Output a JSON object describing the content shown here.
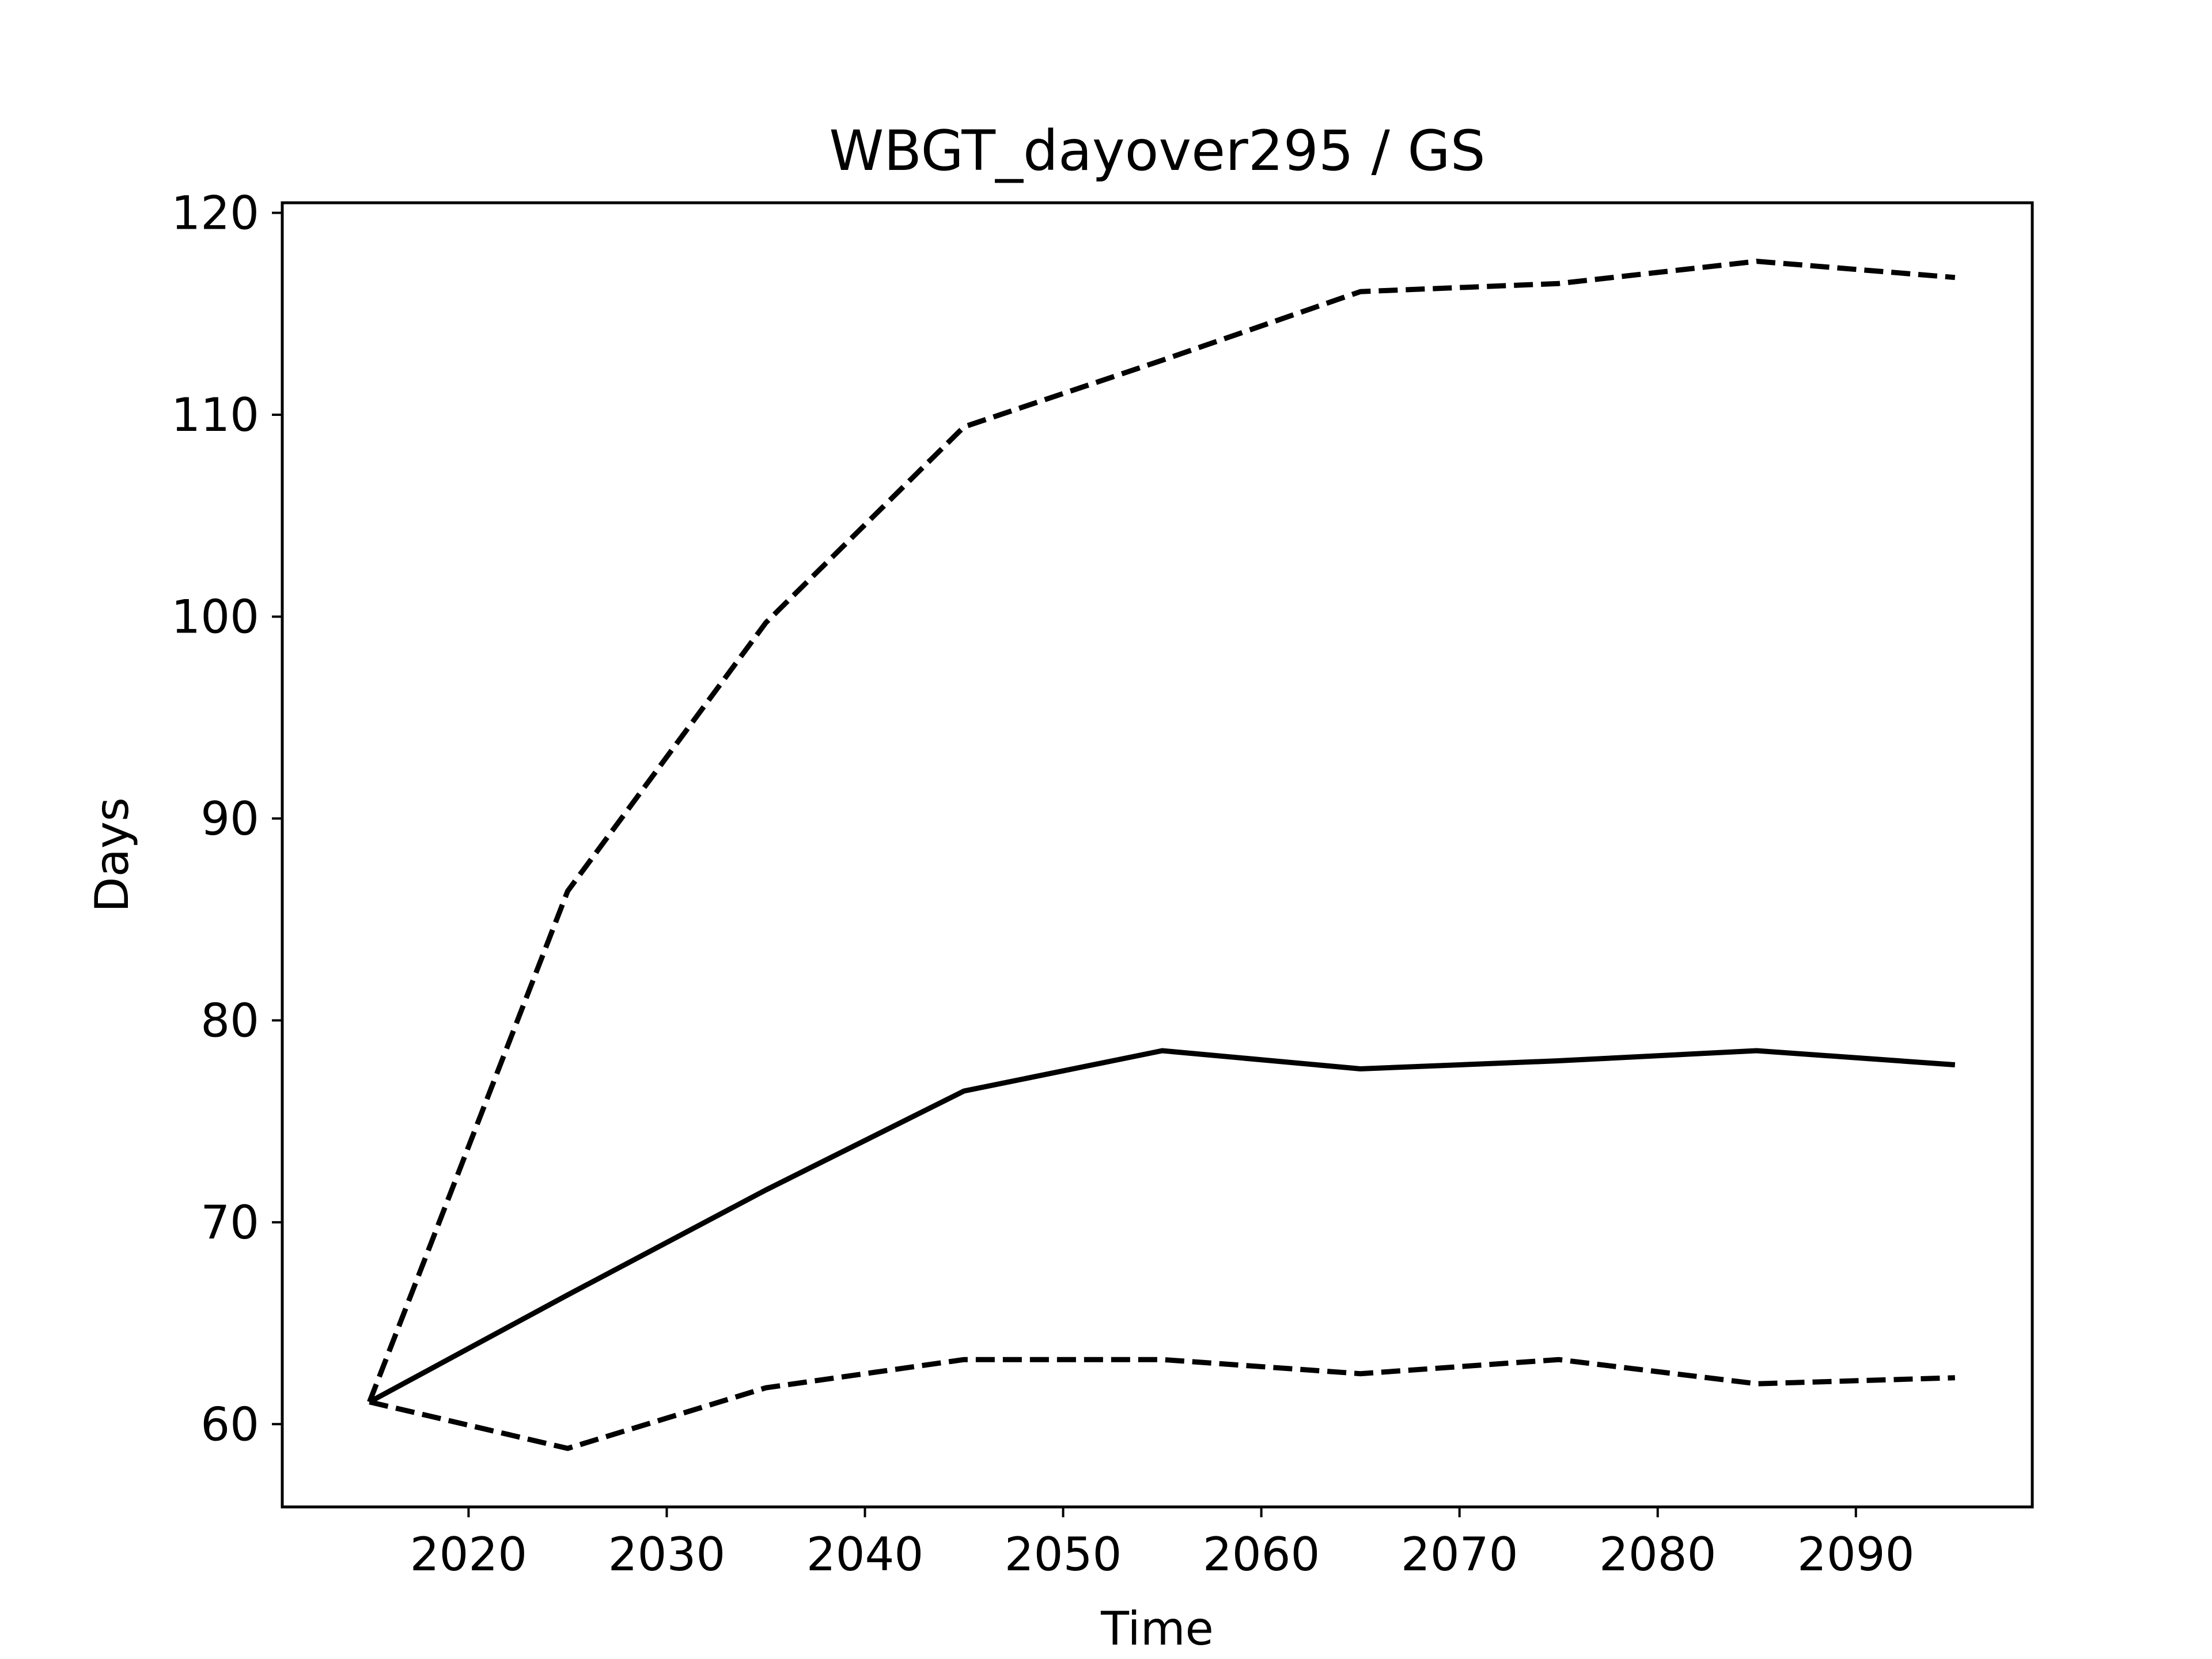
{
  "chart_data": {
    "type": "line",
    "title": "WBGT_dayover295 / GS",
    "xlabel": "Time",
    "ylabel": "Days",
    "xlim": [
      2010.6,
      2098.9
    ],
    "ylim": [
      55.9,
      120.5
    ],
    "xticks": [
      2020,
      2030,
      2040,
      2050,
      2060,
      2070,
      2080,
      2090
    ],
    "yticks": [
      60,
      70,
      80,
      90,
      100,
      110,
      120
    ],
    "grid": false,
    "legend": "none",
    "series": [
      {
        "style": "solid",
        "color": "#000000",
        "x": [
          2015,
          2025,
          2035,
          2045,
          2055,
          2065,
          2075,
          2085,
          2095
        ],
        "y": [
          61.1,
          66.4,
          71.6,
          76.5,
          78.5,
          77.6,
          78.0,
          78.5,
          77.8
        ]
      },
      {
        "style": "dashed",
        "color": "#000000",
        "x": [
          2015,
          2025,
          2035,
          2045,
          2055,
          2065,
          2075,
          2085,
          2095
        ],
        "y": [
          61.1,
          86.4,
          99.7,
          109.4,
          112.7,
          116.1,
          116.5,
          117.6,
          116.8
        ]
      },
      {
        "style": "dashed",
        "color": "#000000",
        "x": [
          2015,
          2025,
          2035,
          2045,
          2055,
          2065,
          2075,
          2085,
          2095
        ],
        "y": [
          61.1,
          58.8,
          61.8,
          63.2,
          63.2,
          62.5,
          63.2,
          62.0,
          62.3
        ]
      }
    ]
  }
}
